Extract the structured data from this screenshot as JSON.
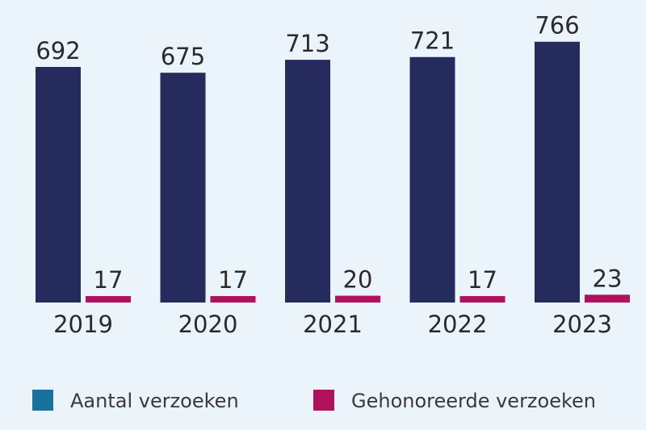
{
  "chart_data": {
    "type": "bar",
    "categories": [
      "2019",
      "2020",
      "2021",
      "2022",
      "2023"
    ],
    "series": [
      {
        "name": "Aantal verzoeken",
        "values": [
          692,
          675,
          713,
          721,
          766
        ],
        "color": "#262b5e",
        "legend_color": "#17719e"
      },
      {
        "name": "Gehonoreerde verzoeken",
        "values": [
          17,
          17,
          20,
          17,
          23
        ],
        "color": "#b0125e",
        "legend_color": "#b0125e"
      }
    ],
    "ylim": [
      0,
      800
    ],
    "grid": false,
    "legend_position": "bottom",
    "background": "#eaf4fa"
  }
}
